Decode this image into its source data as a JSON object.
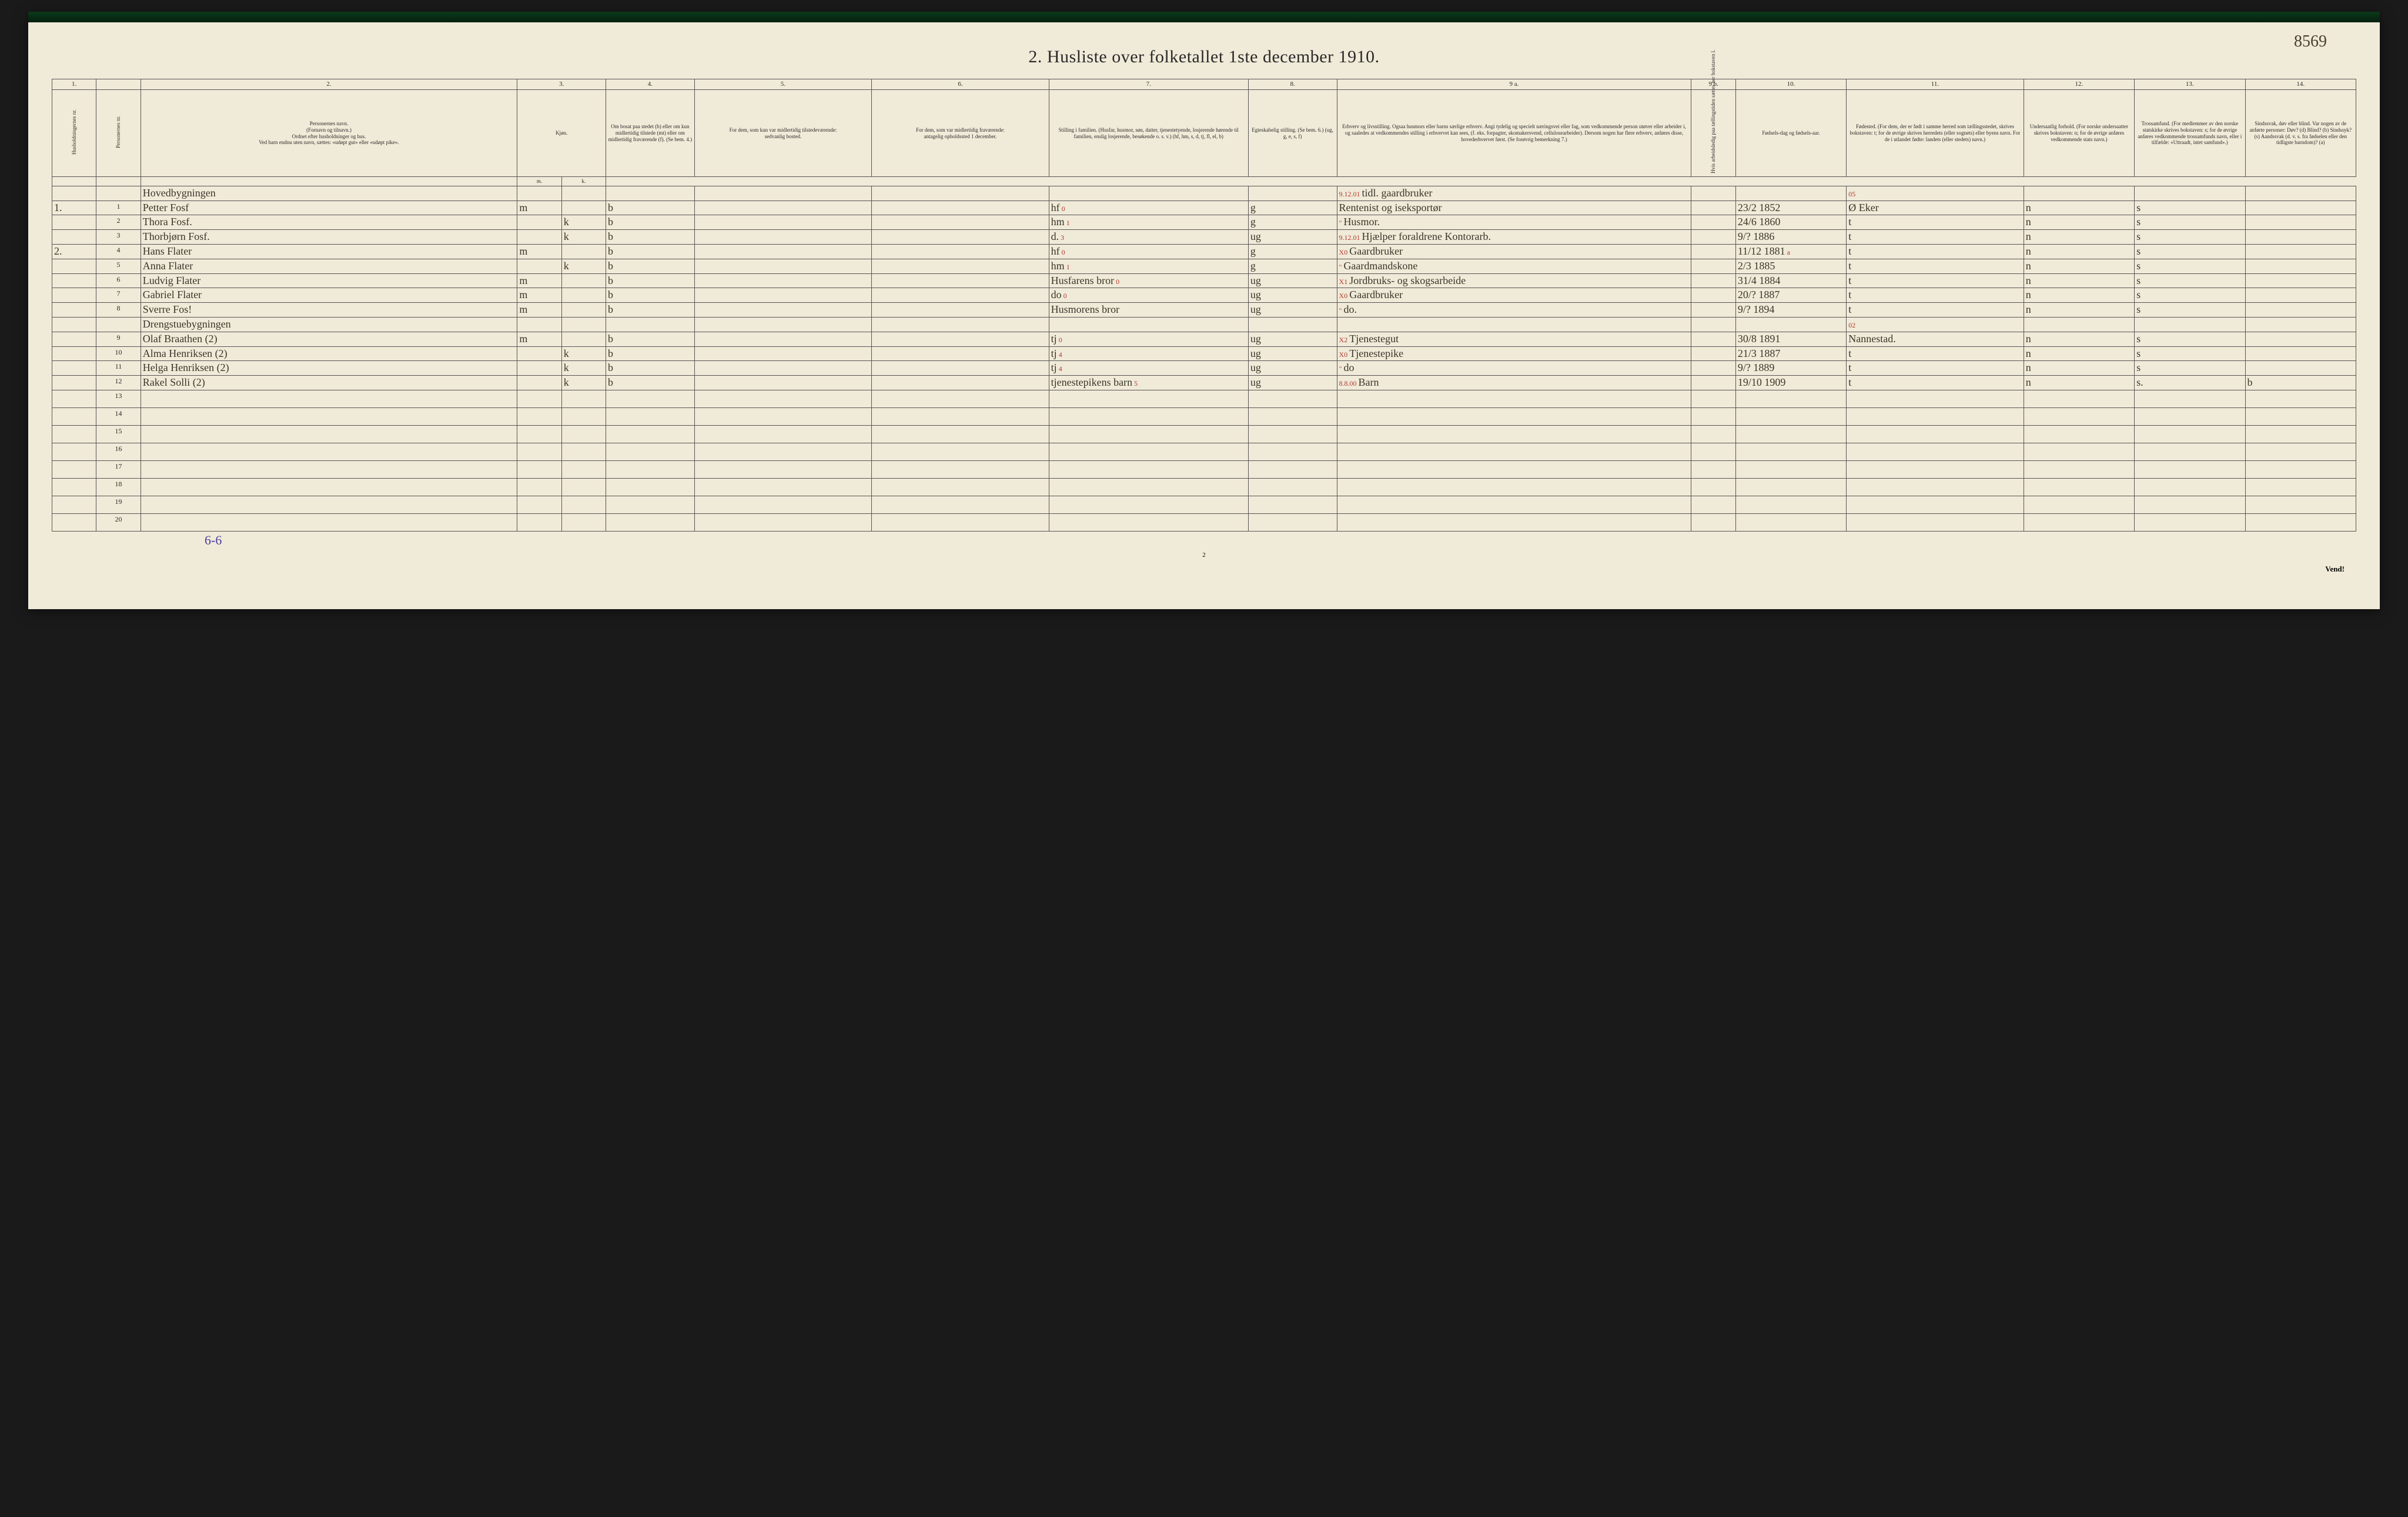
{
  "page_number_written": "8569",
  "title": "2.  Husliste over folketallet 1ste december 1910.",
  "column_numbers": [
    "1.",
    "",
    "2.",
    "3.",
    "",
    "4.",
    "5.",
    "6.",
    "7.",
    "8.",
    "9 a.",
    "9 b.",
    "10.",
    "11.",
    "12.",
    "13.",
    "14."
  ],
  "headers": {
    "c1a": "Husholdningernes nr.",
    "c1b": "Personernes nr.",
    "c2": "Personernes navn.\n(Fornavn og tilnavn.)\nOrdnet efter husholdninger og hus.\nVed barn endnu uten navn, sættes: «udøpt gut» eller «udøpt pike».",
    "c3": "Kjøn.",
    "c3a": "Mænd.",
    "c3b": "Kvinder.",
    "c4": "Om bosat paa stedet (b) eller om kun midlertidig tilstede (mt) eller om midlertidig fraværende (f). (Se bem. 4.)",
    "c5": "For dem, som kun var midlertidig tilstedeværende:\nsedvanlig bosted.",
    "c6": "For dem, som var midlertidig fraværende:\nantagelig opholdssted 1 december.",
    "c7": "Stilling i familien.\n(Husfar, husmor, søn, datter, tjenestetyende, losjerende hørende til familien, enslig losjerende, besøkende o. s. v.)\n(hf, hm, s, d, tj, fl, el, b)",
    "c8": "Egteskabelig stilling.\n(Se bem. 6.)\n(ug, g, e, s, f)",
    "c9a": "Erhverv og livsstilling.\nOgsaa husmors eller barns særlige erhverv. Angi tydelig og specielt næringsvei eller fag, som vedkommende person utøver eller arbeider i, og saaledes at vedkommendes stilling i erhvervet kan sees, (f. eks. forpagter, skomakersvend, cellulosearbeider). Dersom nogen har flere erhverv, anføres disse, hovederhvervet først. (Se forøvrig bemerkning 7.)",
    "c9b": "Hvis arbeidsledig paa tællingstiden sættes her bokstaven l.",
    "c10": "Fødsels-dag og fødsels-aar.",
    "c11": "Fødested.\n(For dem, der er født i samme herred som tællingsstedet, skrives bokstaven: t; for de øvrige skrives herredets (eller sognets) eller byens navn. For de i utlandet fødte: landets (eller stedets) navn.)",
    "c12": "Undersaatlig forhold.\n(For norske undersaatter skrives bokstaven: n; for de øvrige anføres vedkommende stats navn.)",
    "c13": "Trossamfund.\n(For medlemmer av den norske statskirke skrives bokstaven: s; for de øvrige anføres vedkommende trossamfunds navn, eller i tilfælde: «Uttraadt, intet samfund».)",
    "c14": "Sindssvak, døv eller blind.\nVar nogen av de anførte personer:\nDøv? (d)\nBlind? (b)\nSindssyk? (s)\nAandssvak (d. v. s. fra fødselen eller den tidligste barndom)? (a)"
  },
  "subheader_row": {
    "c3a": "m.",
    "c3b": "k."
  },
  "rows": [
    {
      "hh": "",
      "pn": "",
      "name": "Hovedbygningen",
      "m": "",
      "k": "",
      "bos": "",
      "sedv": "",
      "frav": "",
      "fam": "",
      "egt": "",
      "erhv_note": "9.12.01",
      "erhv": "tidl. gaardbruker",
      "led": "",
      "fdt": "",
      "fsted_note": "05",
      "fsted": "",
      "und": "",
      "tro": "",
      "sind": ""
    },
    {
      "hh": "1.",
      "pn": "1",
      "name": "Petter Fosf",
      "m": "m",
      "k": "",
      "bos": "b",
      "sedv": "",
      "frav": "",
      "fam": "hf",
      "fam_note": "0",
      "egt": "g",
      "erhv": "Rentenist og iseksportør",
      "led": "",
      "fdt": "23/2 1852",
      "fsted": "Ø Eker",
      "und": "n",
      "tro": "s",
      "sind": ""
    },
    {
      "hh": "",
      "pn": "2",
      "name": "Thora Fosf.",
      "m": "",
      "k": "k",
      "bos": "b",
      "sedv": "",
      "frav": "",
      "fam": "hm",
      "fam_note": "1",
      "egt": "g",
      "erhv_note": "\"",
      "erhv": "Husmor.",
      "led": "",
      "fdt": "24/6 1860",
      "fsted": "t",
      "und": "n",
      "tro": "s",
      "sind": ""
    },
    {
      "hh": "",
      "pn": "3",
      "name": "Thorbjørn Fosf.",
      "m": "",
      "k": "k",
      "bos": "b",
      "sedv": "",
      "frav": "",
      "fam": "d.",
      "fam_note": "3",
      "egt": "ug",
      "erhv_note": "9.12.01",
      "erhv": "Hjælper foraldrene Kontorarb.",
      "led": "",
      "fdt": "9/? 1886",
      "fsted": "t",
      "und": "n",
      "tro": "s",
      "sind": ""
    },
    {
      "hh": "2.",
      "pn": "4",
      "name": "Hans Flater",
      "m": "m",
      "k": "",
      "bos": "b",
      "sedv": "",
      "frav": "",
      "fam": "hf",
      "fam_note": "0",
      "egt": "g",
      "erhv_note": "X0",
      "erhv": "Gaardbruker",
      "led": "",
      "fdt": "11/12 1881",
      "fdt_note": "a",
      "fsted": "t",
      "und": "n",
      "tro": "s",
      "sind": ""
    },
    {
      "hh": "",
      "pn": "5",
      "name": "Anna Flater",
      "m": "",
      "k": "k",
      "bos": "b",
      "sedv": "",
      "frav": "",
      "fam": "hm",
      "fam_note": "1",
      "egt": "g",
      "erhv_note": "\"",
      "erhv": "Gaardmandskone",
      "led": "",
      "fdt": "2/3 1885",
      "fsted": "t",
      "und": "n",
      "tro": "s",
      "sind": ""
    },
    {
      "hh": "",
      "pn": "6",
      "name": "Ludvig Flater",
      "m": "m",
      "k": "",
      "bos": "b",
      "sedv": "",
      "frav": "",
      "fam": "Husfarens bror",
      "fam_note": "0",
      "egt": "ug",
      "erhv_note": "X1",
      "erhv": "Jordbruks- og skogsarbeide",
      "led": "",
      "fdt": "31/4 1884",
      "fsted": "t",
      "und": "n",
      "tro": "s",
      "sind": ""
    },
    {
      "hh": "",
      "pn": "7",
      "name": "Gabriel Flater",
      "m": "m",
      "k": "",
      "bos": "b",
      "sedv": "",
      "frav": "",
      "fam": "do",
      "fam_note": "0",
      "egt": "ug",
      "erhv_note": "X0",
      "erhv": "Gaardbruker",
      "led": "",
      "fdt": "20/? 1887",
      "fsted": "t",
      "und": "n",
      "tro": "s",
      "sind": ""
    },
    {
      "hh": "",
      "pn": "8",
      "name": "Sverre Fos!",
      "m": "m",
      "k": "",
      "bos": "b",
      "sedv": "",
      "frav": "",
      "fam": "Husmorens bror",
      "fam_note": "",
      "egt": "ug",
      "erhv_note": "\"",
      "erhv": "do.",
      "led": "",
      "fdt": "9/? 1894",
      "fsted": "t",
      "und": "n",
      "tro": "s",
      "sind": ""
    },
    {
      "hh": "",
      "pn": "",
      "name": "Drengstuebygningen",
      "m": "",
      "k": "",
      "bos": "",
      "sedv": "",
      "frav": "",
      "fam": "",
      "egt": "",
      "erhv": "",
      "led": "",
      "fdt": "",
      "fsted_note": "02",
      "fsted": "",
      "und": "",
      "tro": "",
      "sind": ""
    },
    {
      "hh": "",
      "pn": "9",
      "name": "Olaf Braathen (2)",
      "m": "m",
      "k": "",
      "bos": "b",
      "sedv": "",
      "frav": "",
      "fam": "tj",
      "fam_note": "0",
      "egt": "ug",
      "erhv_note": "X2",
      "erhv": "Tjenestegut",
      "led": "",
      "fdt": "30/8 1891",
      "fsted": "Nannestad.",
      "und": "n",
      "tro": "s",
      "sind": ""
    },
    {
      "hh": "",
      "pn": "10",
      "name": "Alma Henriksen (2)",
      "m": "",
      "k": "k",
      "bos": "b",
      "sedv": "",
      "frav": "",
      "fam": "tj",
      "fam_note": "4",
      "egt": "ug",
      "erhv_note": "X0",
      "erhv": "Tjenestepike",
      "led": "",
      "fdt": "21/3 1887",
      "fsted": "t",
      "und": "n",
      "tro": "s",
      "sind": ""
    },
    {
      "hh": "",
      "pn": "11",
      "name": "Helga Henriksen (2)",
      "m": "",
      "k": "k",
      "bos": "b",
      "sedv": "",
      "frav": "",
      "fam": "tj",
      "fam_note": "4",
      "egt": "ug",
      "erhv_note": "\"",
      "erhv": "do",
      "led": "",
      "fdt": "9/? 1889",
      "fsted": "t",
      "und": "n",
      "tro": "s",
      "sind": ""
    },
    {
      "hh": "",
      "pn": "12",
      "name": "Rakel Solli  (2)",
      "m": "",
      "k": "k",
      "bos": "b",
      "sedv": "",
      "frav": "",
      "fam": "tjenestepikens barn",
      "fam_note": "5",
      "egt": "ug",
      "erhv_note": "8.8.00",
      "erhv": "Barn",
      "led": "",
      "fdt": "19/10 1909",
      "fsted": "t",
      "und": "n",
      "tro": "s.",
      "sind": "b"
    }
  ],
  "empty_row_nums": [
    "13",
    "14",
    "15",
    "16",
    "17",
    "18",
    "19",
    "20"
  ],
  "footer_63": "6-6",
  "bottom_page_num": "2",
  "vend": "Vend!",
  "colwidths_pct": [
    2,
    2,
    17,
    2,
    2,
    4,
    8,
    8,
    9,
    4,
    16,
    2,
    5,
    8,
    5,
    5,
    5
  ]
}
